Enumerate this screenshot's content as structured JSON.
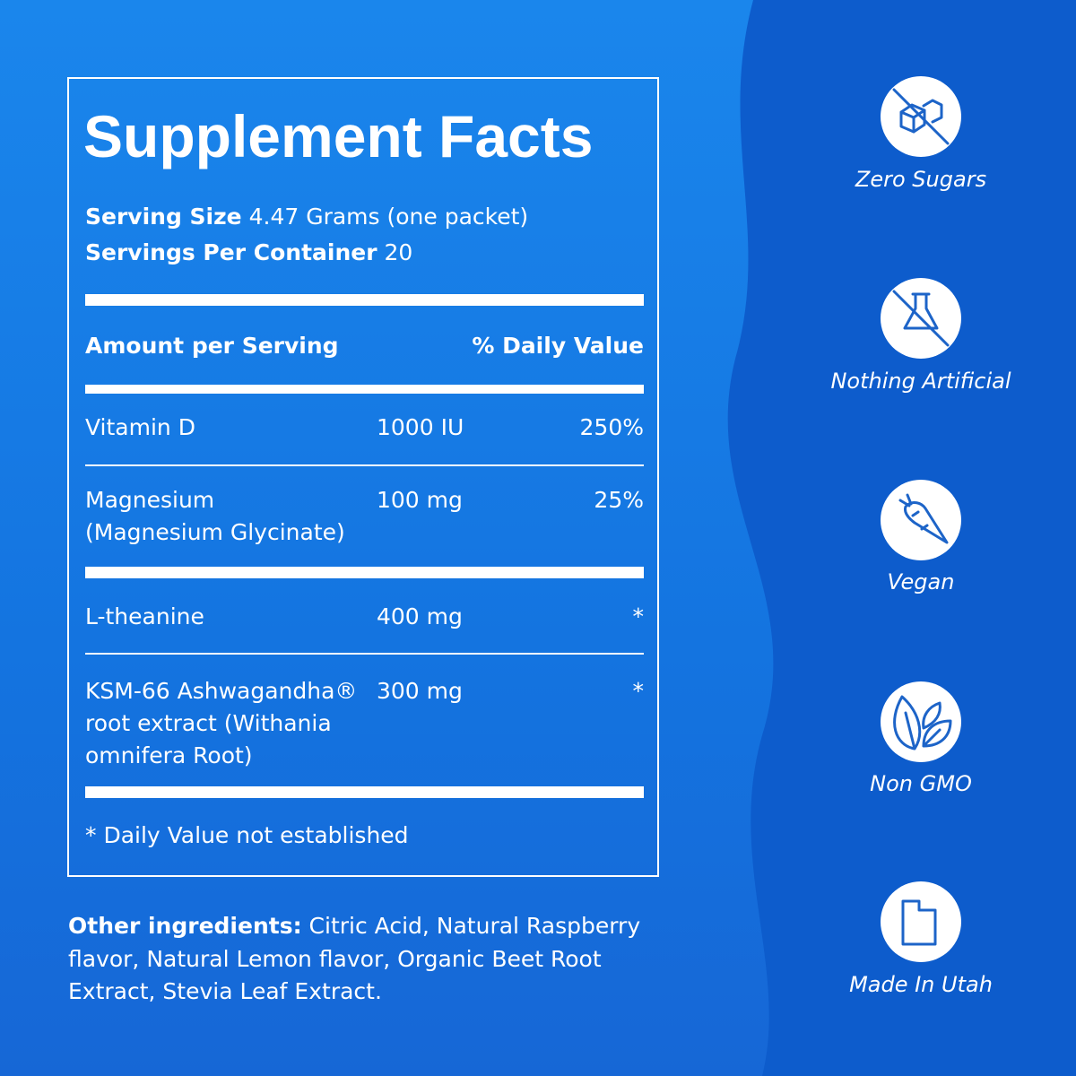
{
  "facts": {
    "title": "Supplement Facts",
    "serving_size": {
      "label": "Serving Size",
      "value": "4.47 Grams (one packet)"
    },
    "servings_per_container": {
      "label": "Servings Per Container",
      "value": "20"
    },
    "header": [
      "Amount per Serving",
      "% Daily Value"
    ],
    "rows": [
      {
        "name": [
          "Vitamin D"
        ],
        "amount": "1000 IU",
        "daily_value": "250%"
      },
      {
        "name": [
          "Magnesium",
          "(Magnesium Glycinate)"
        ],
        "amount": "100 mg",
        "daily_value": "25%"
      },
      {
        "name": [
          "L-theanine"
        ],
        "amount": "400 mg",
        "daily_value": "*"
      },
      {
        "name": [
          "KSM-66 Ashwagandha®",
          "root extract (Withania",
          "omnifera Root)"
        ],
        "amount": "300 mg",
        "daily_value": "*"
      }
    ],
    "footnote": "* Daily Value not established"
  },
  "other_ingredients": {
    "label": "Other ingredients:",
    "lines": [
      " Citric Acid, Natural Raspberry",
      "flavor, Natural Lemon flavor, Organic Beet Root",
      "Extract, Stevia Leaf Extract."
    ]
  },
  "badges": [
    "Zero Sugars",
    "Nothing Artificial",
    "Vegan",
    "Non GMO",
    "Made In Utah"
  ]
}
